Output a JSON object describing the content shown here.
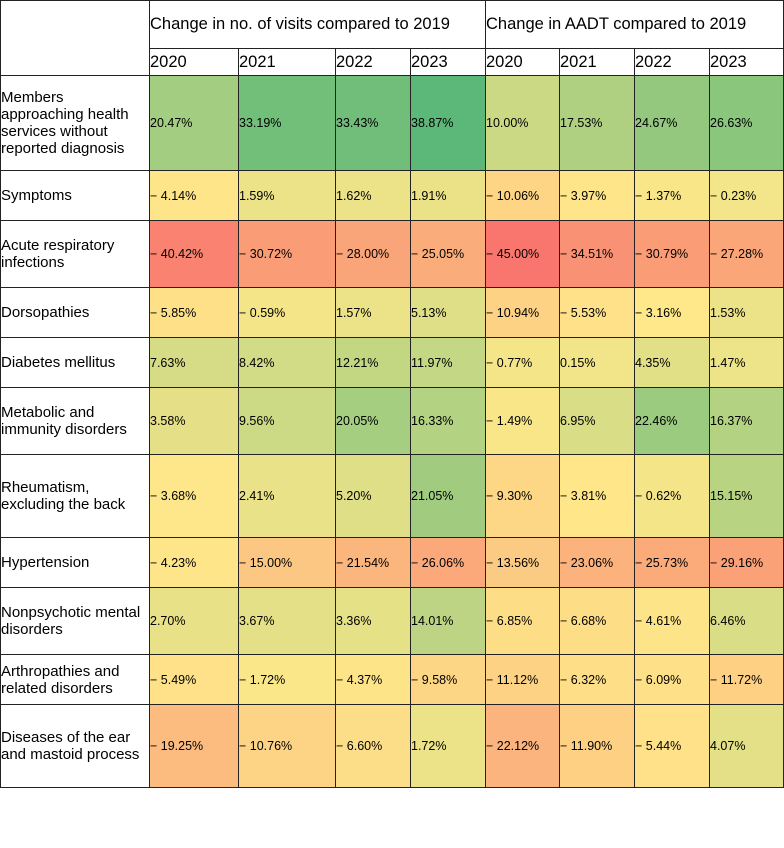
{
  "chart_data": {
    "type": "heatmap",
    "column_groups": [
      {
        "label": "Change in no. of visits compared to 2019",
        "years": [
          "2020",
          "2021",
          "2022",
          "2023"
        ]
      },
      {
        "label": "Change in AADT compared to 2019",
        "years": [
          "2020",
          "2021",
          "2022",
          "2023"
        ]
      }
    ],
    "rows": [
      {
        "label": "Members approaching health services without reported diagnosis",
        "visits": [
          "20.47%",
          "33.19%",
          "33.43%",
          "38.87%"
        ],
        "aadt": [
          "10.00%",
          "17.53%",
          "24.67%",
          "26.63%"
        ],
        "visits_values": [
          20.47,
          33.19,
          33.43,
          38.87
        ],
        "aadt_values": [
          10.0,
          17.53,
          24.67,
          26.63
        ]
      },
      {
        "label": "Symptoms",
        "visits": [
          "− 4.14%",
          "1.59%",
          "1.62%",
          "1.91%"
        ],
        "aadt": [
          "− 10.06%",
          "− 3.97%",
          "− 1.37%",
          "− 0.23%"
        ],
        "visits_values": [
          -4.14,
          1.59,
          1.62,
          1.91
        ],
        "aadt_values": [
          -10.06,
          -3.97,
          -1.37,
          -0.23
        ]
      },
      {
        "label": "Acute respiratory infections",
        "visits": [
          "− 40.42%",
          "− 30.72%",
          "− 28.00%",
          "− 25.05%"
        ],
        "aadt": [
          "− 45.00%",
          "− 34.51%",
          "− 30.79%",
          "− 27.28%"
        ],
        "visits_values": [
          -40.42,
          -30.72,
          -28.0,
          -25.05
        ],
        "aadt_values": [
          -45.0,
          -34.51,
          -30.79,
          -27.28
        ]
      },
      {
        "label": "Dorsopathies",
        "visits": [
          "− 5.85%",
          "− 0.59%",
          "1.57%",
          "5.13%"
        ],
        "aadt": [
          "− 10.94%",
          "− 5.53%",
          "− 3.16%",
          "1.53%"
        ],
        "visits_values": [
          -5.85,
          -0.59,
          1.57,
          5.13
        ],
        "aadt_values": [
          -10.94,
          -5.53,
          -3.16,
          1.53
        ]
      },
      {
        "label": "Diabetes mellitus",
        "visits": [
          "7.63%",
          "8.42%",
          "12.21%",
          "11.97%"
        ],
        "aadt": [
          "− 0.77%",
          "0.15%",
          "4.35%",
          "1.47%"
        ],
        "visits_values": [
          7.63,
          8.42,
          12.21,
          11.97
        ],
        "aadt_values": [
          -0.77,
          0.15,
          4.35,
          1.47
        ]
      },
      {
        "label": "Metabolic and immunity disorders",
        "visits": [
          "3.58%",
          "9.56%",
          "20.05%",
          "16.33%"
        ],
        "aadt": [
          "− 1.49%",
          "6.95%",
          "22.46%",
          "16.37%"
        ],
        "visits_values": [
          3.58,
          9.56,
          20.05,
          16.33
        ],
        "aadt_values": [
          -1.49,
          6.95,
          22.46,
          16.37
        ]
      },
      {
        "label": "Rheumatism, excluding the back",
        "visits": [
          "− 3.68%",
          "2.41%",
          "5.20%",
          "21.05%"
        ],
        "aadt": [
          "− 9.30%",
          "− 3.81%",
          "− 0.62%",
          "15.15%"
        ],
        "visits_values": [
          -3.68,
          2.41,
          5.2,
          21.05
        ],
        "aadt_values": [
          -9.3,
          -3.81,
          -0.62,
          15.15
        ]
      },
      {
        "label": "Hypertension",
        "visits": [
          "− 4.23%",
          "− 15.00%",
          "− 21.54%",
          "− 26.06%"
        ],
        "aadt": [
          "− 13.56%",
          "− 23.06%",
          "− 25.73%",
          "− 29.16%"
        ],
        "visits_values": [
          -4.23,
          -15.0,
          -21.54,
          -26.06
        ],
        "aadt_values": [
          -13.56,
          -23.06,
          -25.73,
          -29.16
        ]
      },
      {
        "label": "Nonpsychotic mental disorders",
        "visits": [
          "2.70%",
          "3.67%",
          "3.36%",
          "14.01%"
        ],
        "aadt": [
          "− 6.85%",
          "− 6.68%",
          "− 4.61%",
          "6.46%"
        ],
        "visits_values": [
          2.7,
          3.67,
          3.36,
          14.01
        ],
        "aadt_values": [
          -6.85,
          -6.68,
          -4.61,
          6.46
        ]
      },
      {
        "label": "Arthropathies and related disorders",
        "visits": [
          "− 5.49%",
          "− 1.72%",
          "− 4.37%",
          "− 9.58%"
        ],
        "aadt": [
          "− 11.12%",
          "− 6.32%",
          "− 6.09%",
          "− 11.72%"
        ],
        "visits_values": [
          -5.49,
          -1.72,
          -4.37,
          -9.58
        ],
        "aadt_values": [
          -11.12,
          -6.32,
          -6.09,
          -11.72
        ]
      },
      {
        "label": "Diseases of the ear and mastoid process",
        "visits": [
          "− 19.25%",
          "− 10.76%",
          "− 6.60%",
          "1.72%"
        ],
        "aadt": [
          "− 22.12%",
          "− 11.90%",
          "− 5.44%",
          "4.07%"
        ],
        "visits_values": [
          -19.25,
          -10.76,
          -6.6,
          1.72
        ],
        "aadt_values": [
          -22.12,
          -11.9,
          -5.44,
          4.07
        ]
      }
    ],
    "color_scale": {
      "min": -45.0,
      "mid": -3.0,
      "max": 38.87,
      "low": "#f8766d",
      "mid_color": "#fee88a",
      "high": "#5cb878"
    }
  }
}
